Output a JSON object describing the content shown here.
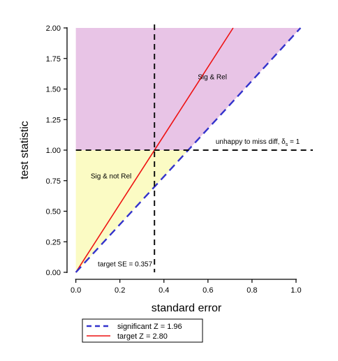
{
  "chart_data": {
    "type": "line",
    "title": "",
    "xlabel": "standard error",
    "ylabel": "test statistic",
    "xlim": [
      -0.04,
      1.07
    ],
    "ylim": [
      0,
      2
    ],
    "x_ticks": [
      0.0,
      0.2,
      0.4,
      0.6,
      0.8,
      1.0
    ],
    "x_tick_labels": [
      "0.0",
      "0.2",
      "0.4",
      "0.6",
      "0.8",
      "1.0"
    ],
    "y_ticks": [
      0.0,
      0.25,
      0.5,
      0.75,
      1.0,
      1.25,
      1.5,
      1.75,
      2.0
    ],
    "y_tick_labels": [
      "0.00",
      "0.25",
      "0.50",
      "0.75",
      "1.00",
      "1.25",
      "1.50",
      "1.75",
      "2.00"
    ],
    "grid": false,
    "series": [
      {
        "name": "significant Z = 1.96",
        "slope": 1.96,
        "x": [
          0.0,
          1.0204
        ],
        "y": [
          0.0,
          2.0
        ],
        "color": "#3333cc",
        "style": "dashed"
      },
      {
        "name": "target Z = 2.80",
        "slope": 2.8,
        "x": [
          0.0,
          0.7143
        ],
        "y": [
          0.0,
          2.0
        ],
        "color": "#ee1111",
        "style": "solid"
      }
    ],
    "regions": [
      {
        "label": "Sig & Rel",
        "color": "#e8c4e6"
      },
      {
        "label": "Sig & not Rel",
        "color": "#fbfbc4"
      }
    ],
    "reference_lines": [
      {
        "axis": "y",
        "value": 1.0,
        "label": "unhappy to miss diff, δ",
        "label_sub": "s",
        "label_tail": " = 1"
      },
      {
        "axis": "x",
        "value": 0.357,
        "label": "target SE = 0.357"
      }
    ],
    "legend": {
      "position": "bottom-left"
    }
  }
}
